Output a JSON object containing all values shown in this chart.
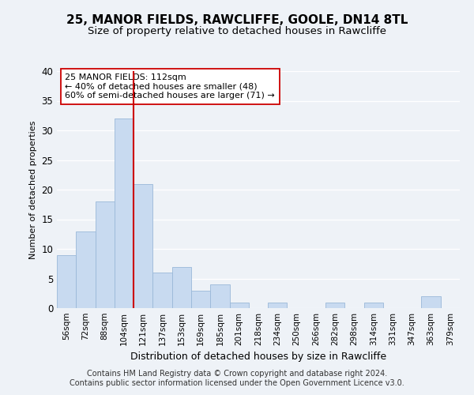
{
  "title": "25, MANOR FIELDS, RAWCLIFFE, GOOLE, DN14 8TL",
  "subtitle": "Size of property relative to detached houses in Rawcliffe",
  "xlabel": "Distribution of detached houses by size in Rawcliffe",
  "ylabel": "Number of detached properties",
  "categories": [
    "56sqm",
    "72sqm",
    "88sqm",
    "104sqm",
    "121sqm",
    "137sqm",
    "153sqm",
    "169sqm",
    "185sqm",
    "201sqm",
    "218sqm",
    "234sqm",
    "250sqm",
    "266sqm",
    "282sqm",
    "298sqm",
    "314sqm",
    "331sqm",
    "347sqm",
    "363sqm",
    "379sqm"
  ],
  "values": [
    9,
    13,
    18,
    32,
    21,
    6,
    7,
    3,
    4,
    1,
    0,
    1,
    0,
    0,
    1,
    0,
    1,
    0,
    0,
    2,
    0
  ],
  "bar_color": "#c8daf0",
  "bar_edge_color": "#9ab8d8",
  "vline_x_index": 3.5,
  "vline_color": "#cc0000",
  "annotation_line1": "25 MANOR FIELDS: 112sqm",
  "annotation_line2": "← 40% of detached houses are smaller (48)",
  "annotation_line3": "60% of semi-detached houses are larger (71) →",
  "annotation_box_color": "#ffffff",
  "annotation_box_edge": "#cc0000",
  "ylim": [
    0,
    40
  ],
  "yticks": [
    0,
    5,
    10,
    15,
    20,
    25,
    30,
    35,
    40
  ],
  "footer_line1": "Contains HM Land Registry data © Crown copyright and database right 2024.",
  "footer_line2": "Contains public sector information licensed under the Open Government Licence v3.0.",
  "background_color": "#eef2f7",
  "grid_color": "#ffffff",
  "title_fontsize": 11,
  "subtitle_fontsize": 9.5,
  "ylabel_fontsize": 8,
  "xlabel_fontsize": 9,
  "footer_fontsize": 7,
  "annotation_fontsize": 8
}
